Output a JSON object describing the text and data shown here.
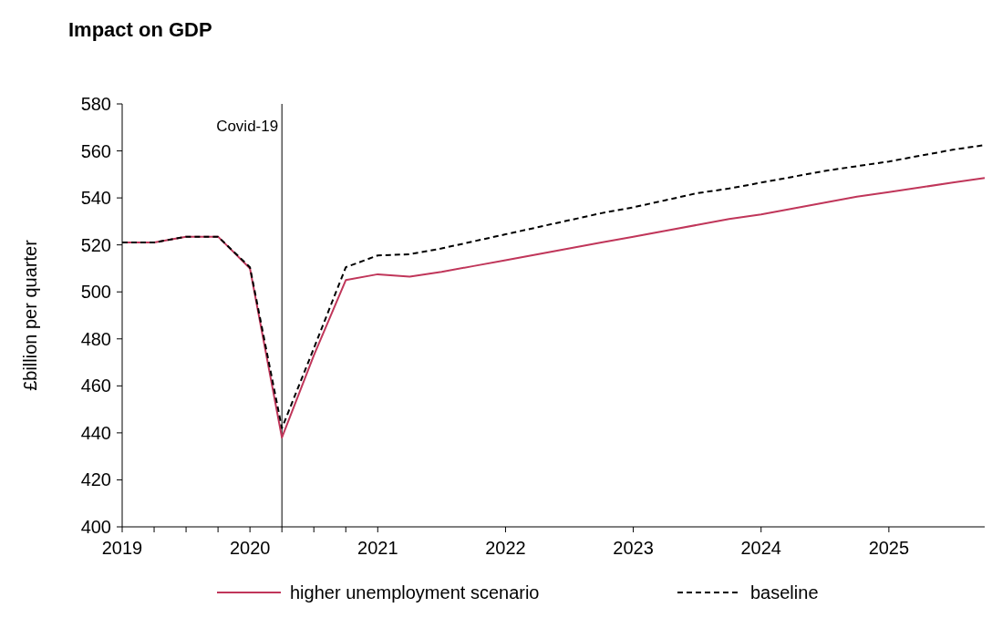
{
  "chart_data": {
    "type": "line",
    "title": "Impact on GDP",
    "ylabel": "£billion per quarter",
    "x": [
      2019,
      2019.25,
      2019.5,
      2019.75,
      2020,
      2020.25,
      2020.5,
      2020.75,
      2021,
      2021.25,
      2021.5,
      2021.75,
      2022,
      2022.25,
      2022.5,
      2022.75,
      2023,
      2023.25,
      2023.5,
      2023.75,
      2024,
      2024.25,
      2024.5,
      2024.75,
      2025,
      2025.25,
      2025.5,
      2025.75
    ],
    "series": [
      {
        "name": "higher unemployment scenario",
        "color": "#c0365a",
        "line_style": "solid",
        "values": [
          521,
          521,
          523.5,
          523.5,
          510,
          438,
          473,
          505,
          507.5,
          506.5,
          508.5,
          511,
          513.5,
          516,
          518.5,
          521,
          523.5,
          526,
          528.5,
          531,
          533,
          535.5,
          538,
          540.5,
          542.5,
          544.5,
          546.5,
          548.5
        ]
      },
      {
        "name": "baseline",
        "color": "#000000",
        "line_style": "dashed",
        "values": [
          521,
          521,
          523.5,
          523.5,
          510.5,
          442,
          476,
          510.5,
          515.5,
          516,
          518.5,
          521.5,
          524.5,
          527.5,
          530.5,
          533.5,
          536,
          539,
          542,
          544,
          546.5,
          549,
          551.5,
          553.5,
          555.5,
          558,
          560.5,
          562.5
        ]
      }
    ],
    "xlim": [
      2019,
      2025.75
    ],
    "xticks": [
      2019,
      {
        "value": 2019.25,
        "label": null
      },
      {
        "value": 2019.5,
        "label": null
      },
      {
        "value": 2019.75,
        "label": null
      },
      2020,
      {
        "value": 2020.25,
        "label": null
      },
      {
        "value": 2020.5,
        "label": null
      },
      {
        "value": 2020.75,
        "label": null
      },
      2021,
      2022,
      2023,
      2024,
      2025
    ],
    "ylim": [
      400,
      580
    ],
    "yticks": [
      400,
      420,
      440,
      460,
      480,
      500,
      520,
      540,
      560,
      580
    ],
    "ref_lines": [
      {
        "axis": "x",
        "value": 2020.25,
        "label": "Covid-19",
        "color": "#000000"
      }
    ],
    "grid": false,
    "legend": "bottom",
    "marker": "none"
  }
}
